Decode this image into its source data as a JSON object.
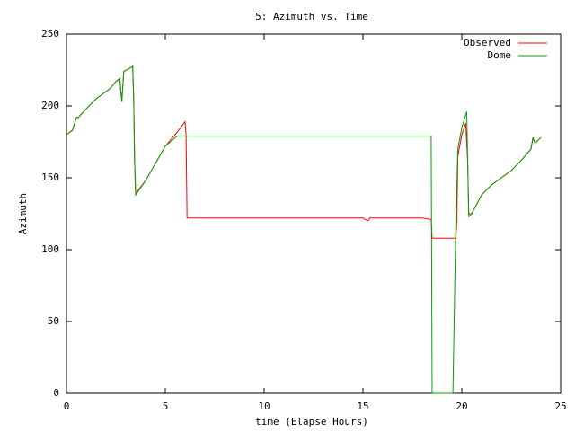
{
  "chart_data": {
    "type": "line",
    "title": "5: Azimuth vs. Time",
    "x_label": "time (Elapse Hours)",
    "y_label": "Azimuth",
    "xlim": [
      0,
      25
    ],
    "xticks": [
      0,
      5,
      10,
      15,
      20,
      25
    ],
    "ylim": [
      0,
      250
    ],
    "yticks": [
      0,
      50,
      100,
      150,
      200,
      250
    ],
    "grid": false,
    "legend": "top-right",
    "series": [
      {
        "name": "Observed",
        "color": "#ff0000",
        "x": [
          0,
          0.3,
          0.5,
          0.6,
          1,
          1.5,
          2,
          2.2,
          2.5,
          2.7,
          2.75,
          2.8,
          2.9,
          3.3,
          3.35,
          3.4,
          3.45,
          3.5,
          4,
          4.5,
          5,
          5.5,
          6,
          6.05,
          6.1,
          10,
          15,
          15.25,
          15.35,
          18,
          18.45,
          18.5,
          19.7,
          19.75,
          19.8,
          20,
          20.2,
          20.3,
          20.35,
          20.5,
          21,
          21.5,
          22,
          22.5,
          23,
          23.5,
          23.6,
          23.7,
          24
        ],
        "values": [
          180,
          183,
          192,
          192,
          198,
          205,
          210,
          212,
          217,
          219,
          210,
          203,
          224,
          227,
          228,
          205,
          160,
          139,
          148,
          160,
          172,
          180,
          189,
          180,
          122,
          122,
          122,
          120,
          122,
          122,
          121,
          108,
          108,
          120,
          165,
          180,
          188,
          160,
          125,
          125,
          138,
          145,
          150,
          155,
          162,
          170,
          178,
          174,
          178
        ]
      },
      {
        "name": "Dome",
        "color": "#00a000",
        "x": [
          0,
          0.3,
          0.5,
          0.6,
          1,
          1.5,
          2,
          2.2,
          2.5,
          2.7,
          2.75,
          2.8,
          2.9,
          3.3,
          3.35,
          3.4,
          3.45,
          3.5,
          4,
          4.5,
          5,
          5.6,
          18.45,
          18.5,
          19.55,
          19.7,
          19.8,
          20,
          20.25,
          20.35,
          20.5,
          21,
          21.5,
          22,
          22.5,
          23,
          23.5,
          23.6,
          23.7,
          24
        ],
        "values": [
          180,
          183,
          192,
          192,
          198,
          205,
          210,
          212,
          217,
          219,
          210,
          203,
          224,
          227,
          228,
          205,
          160,
          138,
          148,
          160,
          172,
          179,
          179,
          0,
          0,
          120,
          170,
          185,
          196,
          123,
          125,
          138,
          145,
          150,
          155,
          162,
          170,
          178,
          174,
          178
        ]
      }
    ]
  }
}
